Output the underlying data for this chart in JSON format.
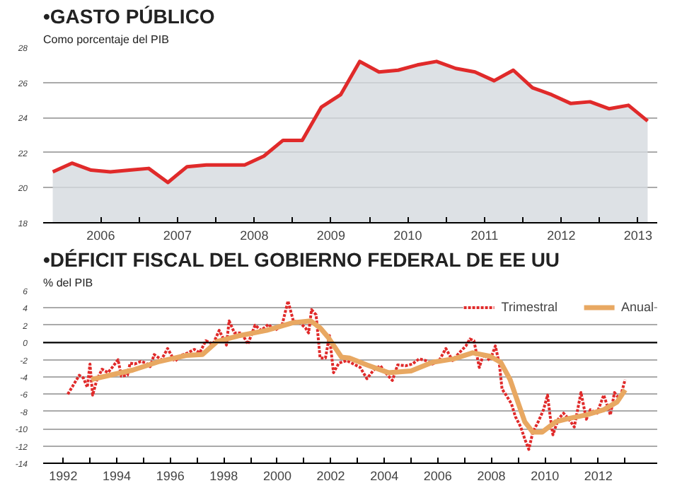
{
  "chart_data": [
    {
      "type": "area",
      "title": "•GASTO PÚBLICO",
      "subtitle": "Como porcentaje del PIB",
      "x": [
        2005.875,
        2006.125,
        2006.375,
        2006.625,
        2006.875,
        2007.125,
        2007.375,
        2007.625,
        2007.875,
        2008.125,
        2008.375,
        2008.625,
        2008.875,
        2009.125,
        2009.375,
        2009.625,
        2009.875,
        2010.125,
        2010.375,
        2010.625,
        2010.875,
        2011.125,
        2011.375,
        2011.625,
        2011.875,
        2012.125,
        2012.375,
        2012.625,
        2012.875,
        2013.125,
        2013.375,
        2013.625
      ],
      "series": [
        {
          "color": "#e02a2a",
          "values": [
            20.9,
            21.4,
            21.0,
            20.9,
            21.0,
            21.1,
            20.3,
            21.2,
            21.3,
            21.3,
            21.3,
            21.8,
            22.7,
            22.7,
            24.6,
            25.3,
            27.2,
            26.6,
            26.7,
            27.0,
            27.2,
            26.8,
            26.6,
            26.1,
            26.7,
            25.7,
            25.3,
            24.8,
            24.9,
            24.5,
            24.7,
            23.8
          ]
        }
      ],
      "xlim": [
        2005.75,
        2013.75
      ],
      "xticks": [
        {
          "value": 2006.5,
          "label": "2006"
        },
        {
          "value": 2007,
          "label": null
        },
        {
          "value": 2007.5,
          "label": "2007"
        },
        {
          "value": 2008,
          "label": null
        },
        {
          "value": 2008.5,
          "label": "2008"
        },
        {
          "value": 2009,
          "label": null
        },
        {
          "value": 2009.5,
          "label": "2009"
        },
        {
          "value": 2010,
          "label": null
        },
        {
          "value": 2010.5,
          "label": "2010"
        },
        {
          "value": 2011,
          "label": null
        },
        {
          "value": 2011.5,
          "label": "2011"
        },
        {
          "value": 2012,
          "label": null
        },
        {
          "value": 2012.5,
          "label": "2012"
        },
        {
          "value": 2013,
          "label": null
        },
        {
          "value": 2013.5,
          "label": "2013"
        }
      ],
      "ylim": [
        18,
        28
      ],
      "yticks": [
        18,
        20,
        22,
        24,
        26,
        28
      ],
      "grid": "y"
    },
    {
      "type": "line",
      "title": "•DÉFICIT FISCAL DEL GOBIERNO FEDERAL DE EE UU",
      "subtitle": "% del PIB",
      "series": [
        {
          "name": "Trimestral",
          "color": "#e02a2a",
          "line_style": "dotted",
          "x": [
            1992.17,
            1992.6,
            1992.75,
            1992.9,
            1993.0,
            1993.1,
            1993.25,
            1993.45,
            1993.67,
            1993.83,
            1994.05,
            1994.17,
            1994.4,
            1994.5,
            1994.67,
            1994.9,
            1995.1,
            1995.25,
            1995.4,
            1995.67,
            1995.9,
            1996.17,
            1996.4,
            1996.67,
            1996.9,
            1997.1,
            1997.33,
            1997.6,
            1997.83,
            1998.1,
            1998.2,
            1998.4,
            1998.67,
            1998.9,
            1999.17,
            1999.4,
            1999.67,
            1999.9,
            2000.17,
            2000.4,
            2000.6,
            2000.83,
            2001.05,
            2001.17,
            2001.28,
            2001.45,
            2001.6,
            2001.8,
            2001.95,
            2002.1,
            2002.3,
            2002.6,
            2002.85,
            2003.1,
            2003.35,
            2003.6,
            2003.85,
            2004.1,
            2004.3,
            2004.5,
            2004.8,
            2005.05,
            2005.3,
            2005.55,
            2005.8,
            2006.05,
            2006.3,
            2006.55,
            2006.8,
            2007.05,
            2007.2,
            2007.35,
            2007.55,
            2007.7,
            2007.95,
            2008.15,
            2008.3,
            2008.4,
            2008.55,
            2008.75,
            2008.9,
            2009.1,
            2009.25,
            2009.4,
            2009.55,
            2009.75,
            2009.95,
            2010.1,
            2010.2,
            2010.3,
            2010.5,
            2010.7,
            2010.9,
            2011.1,
            2011.35,
            2011.55,
            2011.7,
            2011.95,
            2012.2,
            2012.45,
            2012.6,
            2012.8,
            2013.0
          ],
          "values": [
            -6.0,
            -3.8,
            -4.1,
            -5.2,
            -2.5,
            -6.1,
            -4.4,
            -3.1,
            -3.5,
            -2.9,
            -2.0,
            -3.9,
            -3.8,
            -2.4,
            -2.5,
            -2.2,
            -2.4,
            -2.8,
            -1.4,
            -2.0,
            -0.7,
            -2.2,
            -1.5,
            -1.2,
            -0.8,
            -1.2,
            0.2,
            -0.2,
            1.4,
            -0.3,
            2.5,
            1.1,
            1.1,
            -0.2,
            2.0,
            1.4,
            2.1,
            1.4,
            1.9,
            4.8,
            2.5,
            2.3,
            1.7,
            1.1,
            3.8,
            3.2,
            -1.8,
            -1.8,
            0.8,
            -3.5,
            -2.4,
            -2.1,
            -2.5,
            -2.9,
            -4.2,
            -3.2,
            -2.7,
            -3.7,
            -4.4,
            -2.6,
            -2.7,
            -2.5,
            -1.9,
            -2.1,
            -2.5,
            -2.1,
            -0.7,
            -2.1,
            -1.2,
            -0.4,
            0.4,
            0.2,
            -2.9,
            -1.4,
            -2.1,
            -0.4,
            -2.5,
            -5.4,
            -6.1,
            -7.1,
            -8.6,
            -9.8,
            -11.2,
            -12.4,
            -10.4,
            -9.2,
            -7.8,
            -6.1,
            -8.6,
            -10.7,
            -8.9,
            -8.2,
            -8.9,
            -9.8,
            -5.8,
            -8.9,
            -7.8,
            -8.2,
            -6.1,
            -8.4,
            -5.8,
            -6.6,
            -4.3
          ]
        },
        {
          "name": "Anual",
          "color": "#e8a862",
          "line_style": "solid",
          "x": [
            1993.05,
            1993.6,
            1994.6,
            1995.6,
            1996.6,
            1997.2,
            1997.75,
            1998.6,
            1999.6,
            2000.6,
            2001.25,
            2001.6,
            2001.9,
            2002.4,
            2002.7,
            2003.35,
            2004.15,
            2005.0,
            2005.8,
            2006.6,
            2007.3,
            2007.95,
            2008.35,
            2008.7,
            2008.9,
            2009.25,
            2009.55,
            2009.9,
            2010.4,
            2010.9,
            2011.55,
            2012.2,
            2012.7,
            2013.0
          ],
          "values": [
            -4.3,
            -3.9,
            -3.2,
            -2.2,
            -1.5,
            -1.4,
            0.1,
            0.8,
            1.4,
            2.3,
            2.5,
            1.7,
            0.6,
            -1.7,
            -1.8,
            -2.6,
            -3.5,
            -3.3,
            -2.3,
            -1.9,
            -1.2,
            -1.6,
            -2.3,
            -4.3,
            -6.1,
            -9.2,
            -10.4,
            -10.4,
            -9.2,
            -8.8,
            -8.4,
            -7.8,
            -6.9,
            -5.5
          ]
        }
      ],
      "xlim": [
        1991.25,
        2014.2
      ],
      "xticks": [
        {
          "value": 1992,
          "label": "1992"
        },
        {
          "value": 1993,
          "label": null
        },
        {
          "value": 1994,
          "label": "1994"
        },
        {
          "value": 1995,
          "label": null
        },
        {
          "value": 1996,
          "label": "1996"
        },
        {
          "value": 1997,
          "label": null
        },
        {
          "value": 1998,
          "label": "1998"
        },
        {
          "value": 1999,
          "label": null
        },
        {
          "value": 2000,
          "label": "2000"
        },
        {
          "value": 2001,
          "label": null
        },
        {
          "value": 2002,
          "label": "2002"
        },
        {
          "value": 2003,
          "label": null
        },
        {
          "value": 2004,
          "label": "2004"
        },
        {
          "value": 2005,
          "label": null
        },
        {
          "value": 2006,
          "label": "2006"
        },
        {
          "value": 2007,
          "label": null
        },
        {
          "value": 2008,
          "label": "2008"
        },
        {
          "value": 2009,
          "label": null
        },
        {
          "value": 2010,
          "label": "2010"
        },
        {
          "value": 2011,
          "label": null
        },
        {
          "value": 2012,
          "label": "2012"
        },
        {
          "value": 2013,
          "label": null
        }
      ],
      "ylim": [
        -14,
        6
      ],
      "yticks": [
        -14,
        -12,
        -10,
        -8,
        -6,
        -4,
        -2,
        0,
        2,
        4,
        6
      ],
      "ref_lines": [
        {
          "axis": "y",
          "value": 0,
          "color": "#000000"
        }
      ],
      "grid": "y",
      "legend": "top right"
    }
  ]
}
